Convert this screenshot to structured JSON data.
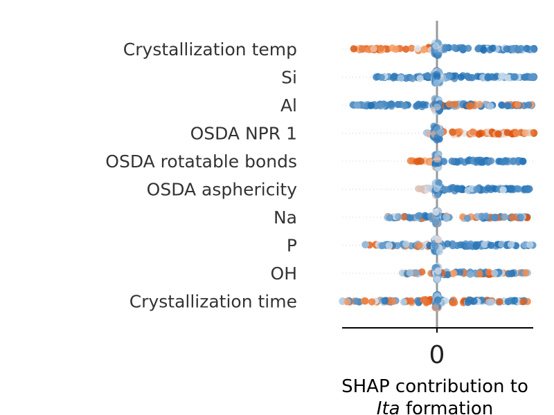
{
  "chart_data": {
    "type": "scatter",
    "subtype": "shap-beeswarm",
    "title": "",
    "xlabel_line1": "SHAP contribution to",
    "xlabel_line2_italic": "Ita",
    "xlabel_line2_rest": " formation",
    "ylabel": "",
    "xlim": [
      -1.0,
      1.0
    ],
    "xticks": [
      0
    ],
    "xtick_labels": [
      "0"
    ],
    "zero_line": true,
    "grid": false,
    "legend": "none",
    "colors": {
      "low": "#1f6fb4",
      "mid": "#dde8f2",
      "high": "#d94801",
      "zero_line": "#999999",
      "guide": "#cccccc",
      "axis": "#000000"
    },
    "features": [
      {
        "name": "Crystallization temp",
        "neg_extent": -0.88,
        "pos_extent": 1.05,
        "neg_feature": "high",
        "pos_feature": "low",
        "core_spread": 0.03
      },
      {
        "name": "Si",
        "neg_extent": -0.65,
        "pos_extent": 1.05,
        "neg_feature": "low",
        "pos_feature": "low",
        "core_spread": 0.03
      },
      {
        "name": "Al",
        "neg_extent": -0.9,
        "pos_extent": 1.0,
        "neg_feature": "low",
        "pos_feature": "mixed",
        "core_spread": 0.03
      },
      {
        "name": "OSDA NPR 1",
        "neg_extent": -0.12,
        "pos_extent": 1.05,
        "neg_feature": "mid",
        "pos_feature": "high",
        "core_spread": 0.04
      },
      {
        "name": "OSDA rotatable bonds",
        "neg_extent": -0.3,
        "pos_extent": 0.9,
        "neg_feature": "high",
        "pos_feature": "low",
        "core_spread": 0.02
      },
      {
        "name": "OSDA asphericity",
        "neg_extent": -0.2,
        "pos_extent": 0.98,
        "neg_feature": "mid",
        "pos_feature": "low",
        "core_spread": 0.02
      },
      {
        "name": "Na",
        "neg_extent": -0.55,
        "pos_extent": 0.95,
        "neg_feature": "mixed",
        "pos_feature": "mixed",
        "core_spread": 0.015
      },
      {
        "name": "P",
        "neg_extent": -0.8,
        "pos_extent": 1.0,
        "neg_feature": "mixed",
        "pos_feature": "low",
        "core_spread": 0.03
      },
      {
        "name": "OH",
        "neg_extent": -0.38,
        "pos_extent": 0.95,
        "neg_feature": "mixed",
        "pos_feature": "mixed",
        "core_spread": 0.02
      },
      {
        "name": "Crystallization time",
        "neg_extent": -1.0,
        "pos_extent": 0.95,
        "neg_feature": "mixed",
        "pos_feature": "mixed",
        "core_spread": 0.02
      }
    ]
  }
}
